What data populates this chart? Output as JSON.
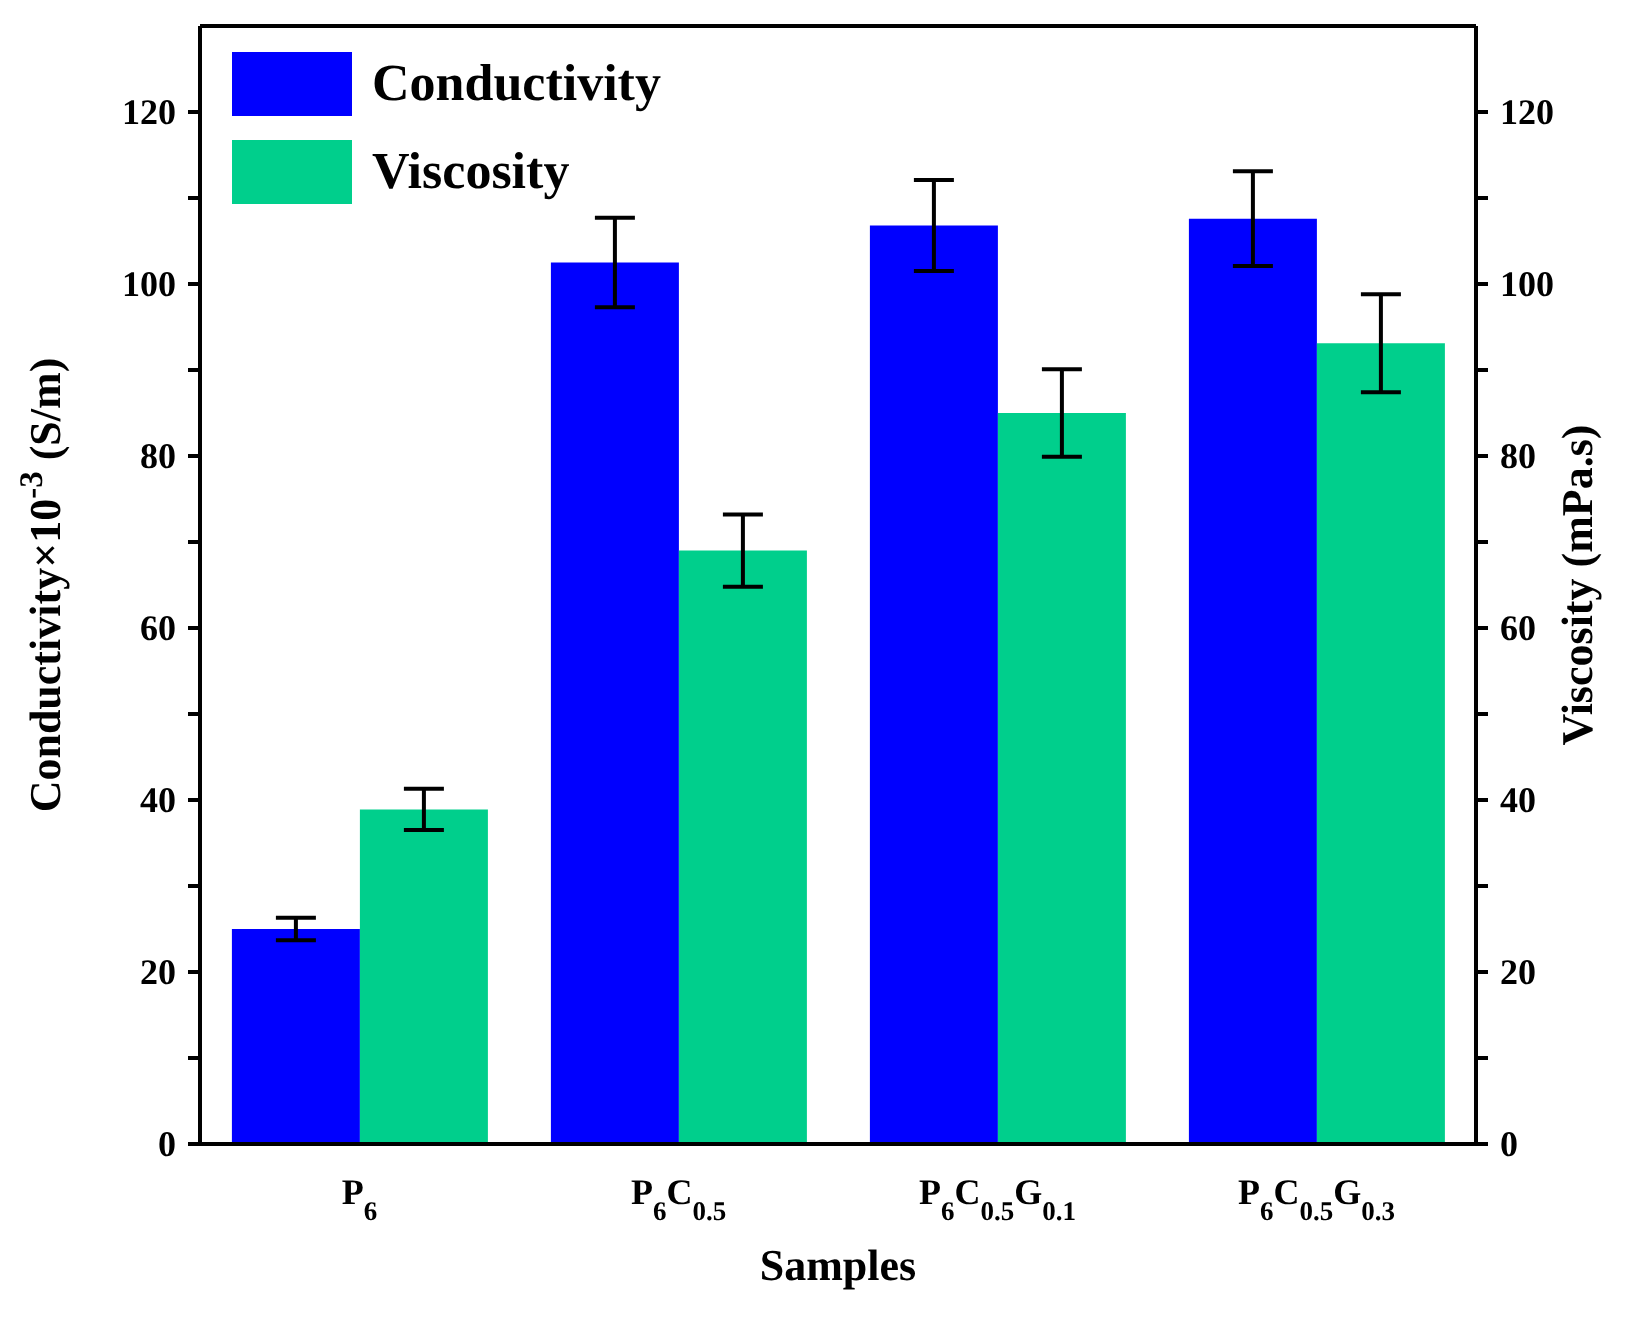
{
  "chart_data": {
    "type": "bar",
    "xlabel": "Samples",
    "ylabel": "Conductivity×10$^{-3}$ (S/m)",
    "y2label": "Viscosity (mPa.s)",
    "categories": [
      "P$_{6}$",
      "P$_{6}$C$_{0.5}$",
      "P$_{6}$C$_{0.5}$G$_{0.1}$",
      "P$_{6}$C$_{0.5}$G$_{0.3}$"
    ],
    "series": [
      {
        "name": "Conductivity",
        "color": "#0000ff",
        "values": [
          25,
          102.5,
          106.8,
          107.6
        ],
        "errors": [
          1.3,
          5.2,
          5.3,
          5.5
        ]
      },
      {
        "name": "Viscosity",
        "color": "#00cf8c",
        "values": [
          38.9,
          69,
          85,
          93.1
        ],
        "errors": [
          2.4,
          4.2,
          5.1,
          5.7
        ],
        "axis": "y2"
      }
    ],
    "ylim": [
      0,
      130
    ],
    "yticks": [
      0,
      {
        "value": 10,
        "label": null
      },
      20,
      {
        "value": 30,
        "label": null
      },
      40,
      {
        "value": 50,
        "label": null
      },
      60,
      {
        "value": 70,
        "label": null
      },
      80,
      {
        "value": 90,
        "label": null
      },
      100,
      {
        "value": 110,
        "label": null
      },
      120
    ],
    "y2lim": [
      0,
      130
    ],
    "y2ticks": [
      0,
      {
        "value": 10,
        "label": null
      },
      20,
      {
        "value": 30,
        "label": null
      },
      40,
      {
        "value": 50,
        "label": null
      },
      60,
      {
        "value": 70,
        "label": null
      },
      80,
      {
        "value": 90,
        "label": null
      },
      100,
      {
        "value": 110,
        "label": null
      },
      120
    ],
    "legend": "top left",
    "grid": false
  }
}
